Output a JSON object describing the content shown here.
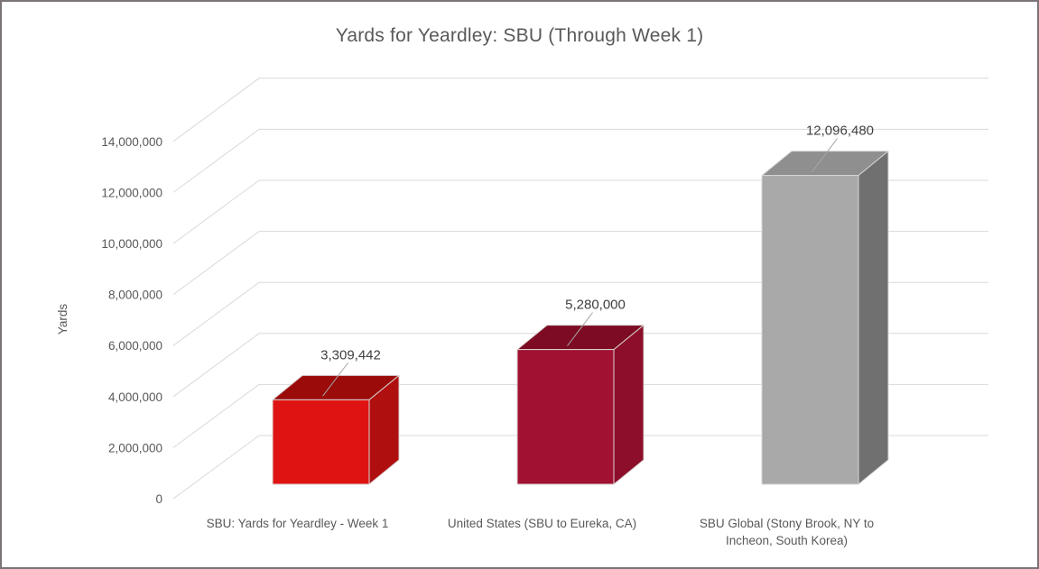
{
  "window": {
    "background": "#ffffff",
    "border_color": "#7a7377"
  },
  "chart_data": {
    "type": "bar",
    "variant": "3d-column",
    "title": "Yards for Yeardley: SBU (Through Week 1)",
    "xlabel": "",
    "ylabel": "Yards",
    "categories": [
      "SBU: Yards for Yeardley - Week 1",
      "United States (SBU to Eureka, CA)",
      "SBU Global (Stony Brook, NY to\nIncheon, South Korea)"
    ],
    "values": [
      3309442,
      5280000,
      12096480
    ],
    "data_labels": [
      "3,309,442",
      "5,280,000",
      "12,096,480"
    ],
    "ylim": [
      0,
      14000000
    ],
    "ytick_step": 2000000,
    "yticks": [
      0,
      2000000,
      4000000,
      6000000,
      8000000,
      10000000,
      12000000,
      14000000
    ],
    "ytick_labels": [
      "0",
      "2,000,000",
      "4,000,000",
      "6,000,000",
      "8,000,000",
      "10,000,000",
      "12,000,000",
      "14,000,000"
    ],
    "grid": true,
    "legend": "none",
    "colors": {
      "bars": [
        {
          "front": "#DF1412",
          "top": "#9A0B0A",
          "side": "#B00F10"
        },
        {
          "front": "#A11132",
          "top": "#7C0B23",
          "side": "#8C0E2A"
        },
        {
          "front": "#A9A9A9",
          "top": "#8F8F8F",
          "side": "#707070"
        }
      ],
      "gridline": "#D9D9D9",
      "bar_edge": "#D8D4D2",
      "axis_text": "#595959",
      "data_label_text": "#404040",
      "leader_line": "#A6A6A6",
      "title_text": "#595959"
    }
  }
}
